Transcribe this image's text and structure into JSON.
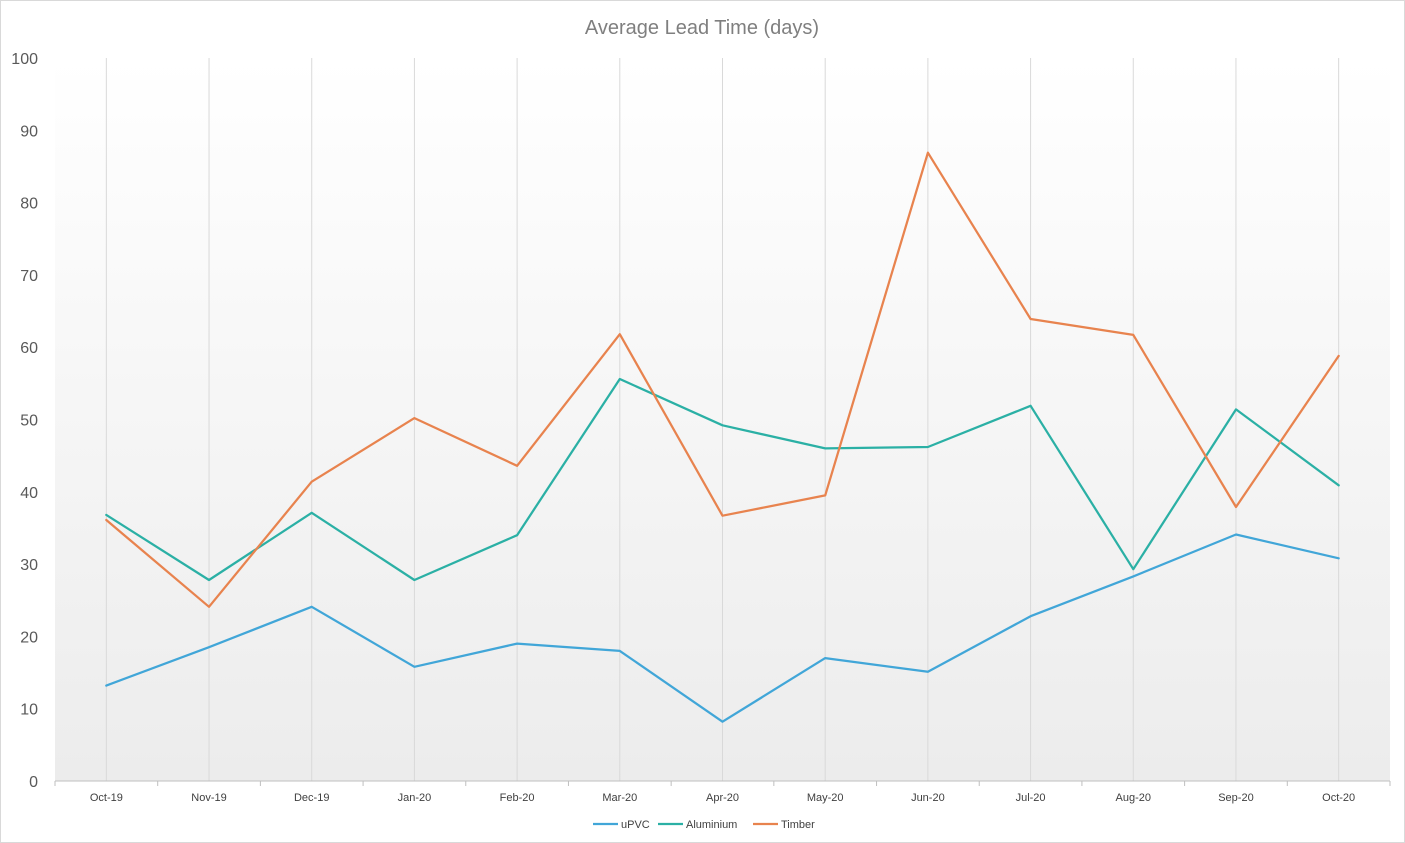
{
  "chart_data": {
    "type": "line",
    "title": "Average Lead Time (days)",
    "xlabel": "",
    "ylabel": "",
    "categories": [
      "Oct-19",
      "Nov-19",
      "Dec-19",
      "Jan-20",
      "Feb-20",
      "Mar-20",
      "Apr-20",
      "May-20",
      "Jun-20",
      "Jul-20",
      "Aug-20",
      "Sep-20",
      "Oct-20"
    ],
    "ylim": [
      0,
      100
    ],
    "yticks": [
      "0",
      "10",
      "20",
      "30",
      "40",
      "50",
      "60",
      "70",
      "80",
      "90",
      "100"
    ],
    "grid": "vertical",
    "legend_position": "bottom",
    "series": [
      {
        "name": "uPVC",
        "color": "#41a6d8",
        "values": [
          13.2,
          18.5,
          24.1,
          15.8,
          19.0,
          18.0,
          8.2,
          17.0,
          15.1,
          22.8,
          28.3,
          34.1,
          30.8
        ]
      },
      {
        "name": "Aluminium",
        "color": "#2bb0a5",
        "values": [
          36.8,
          27.8,
          37.1,
          27.8,
          34.0,
          55.6,
          49.2,
          46.0,
          46.2,
          51.9,
          29.3,
          51.4,
          40.9
        ]
      },
      {
        "name": "Timber",
        "color": "#e8834e",
        "values": [
          36.1,
          24.1,
          41.4,
          50.2,
          43.6,
          61.8,
          36.7,
          39.5,
          86.9,
          63.9,
          61.7,
          37.9,
          58.8
        ]
      }
    ]
  }
}
